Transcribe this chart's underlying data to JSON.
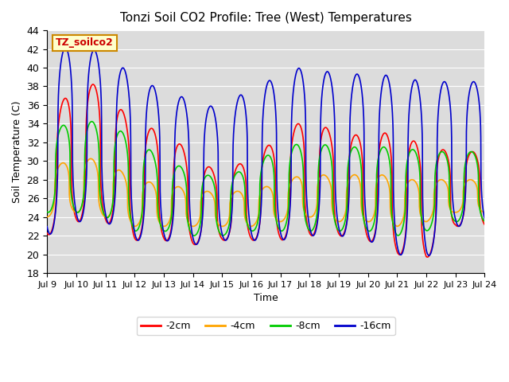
{
  "title": "Tonzi Soil CO2 Profile: Tree (West) Temperatures",
  "xlabel": "Time",
  "ylabel": "Soil Temperature (C)",
  "ylim": [
    18,
    44
  ],
  "yticks": [
    18,
    20,
    22,
    24,
    26,
    28,
    30,
    32,
    34,
    36,
    38,
    40,
    42,
    44
  ],
  "start_day": 9,
  "end_day": 24,
  "colors": {
    "-2cm": "#ff0000",
    "-4cm": "#ffa500",
    "-8cm": "#00cc00",
    "-16cm": "#0000cc"
  },
  "legend_labels": [
    "-2cm",
    "-4cm",
    "-8cm",
    "-16cm"
  ],
  "label_box_text": "TZ_soilco2",
  "label_box_facecolor": "#ffffcc",
  "label_box_edgecolor": "#cc8800",
  "label_text_color": "#cc0000",
  "bg_color": "#dcdcdc",
  "fig_bg_color": "#ffffff",
  "linewidth": 1.2,
  "peak_vals_2cm": [
    34.0,
    38.5,
    38.0,
    33.5,
    33.5,
    30.5,
    28.5,
    30.5,
    32.5,
    35.0,
    32.5,
    33.0,
    33.0,
    31.5,
    31.0
  ],
  "peak_vals_4cm": [
    29.0,
    30.5,
    30.0,
    28.0,
    27.5,
    27.0,
    26.5,
    27.0,
    27.5,
    29.0,
    28.0,
    29.0,
    28.0,
    28.0,
    28.0
  ],
  "peak_vals_8cm": [
    33.0,
    34.5,
    34.0,
    32.5,
    30.0,
    29.0,
    28.0,
    29.5,
    31.5,
    32.0,
    31.5,
    31.5,
    31.5,
    31.0,
    31.0
  ],
  "peak_vals_16cm": [
    41.5,
    42.5,
    41.5,
    39.0,
    37.5,
    36.5,
    35.5,
    38.0,
    39.0,
    40.5,
    39.0,
    39.5,
    39.0,
    38.5,
    38.5
  ],
  "trough_vals_2cm": [
    22.0,
    23.5,
    23.5,
    21.5,
    21.5,
    21.0,
    21.5,
    21.5,
    21.5,
    22.0,
    22.0,
    21.5,
    20.0,
    19.5,
    23.0
  ],
  "trough_vals_4cm": [
    24.0,
    24.5,
    24.0,
    23.0,
    23.0,
    23.0,
    23.0,
    23.0,
    23.5,
    24.0,
    23.5,
    23.5,
    23.0,
    23.5,
    24.5
  ],
  "trough_vals_8cm": [
    24.5,
    24.5,
    24.0,
    22.5,
    22.5,
    22.0,
    22.0,
    22.5,
    22.5,
    22.5,
    22.5,
    22.5,
    22.0,
    22.5,
    23.5
  ],
  "trough_vals_16cm": [
    22.0,
    23.5,
    23.5,
    21.5,
    21.5,
    21.0,
    21.5,
    21.5,
    21.5,
    22.0,
    22.0,
    21.5,
    20.0,
    19.5,
    23.0
  ],
  "peak_phase": 0.58,
  "trough_phase": 0.17,
  "sharpness": 3.0,
  "phase_shift_4cm": 0.07,
  "phase_shift_8cm": 0.04,
  "phase_shift_16cm": -0.04
}
